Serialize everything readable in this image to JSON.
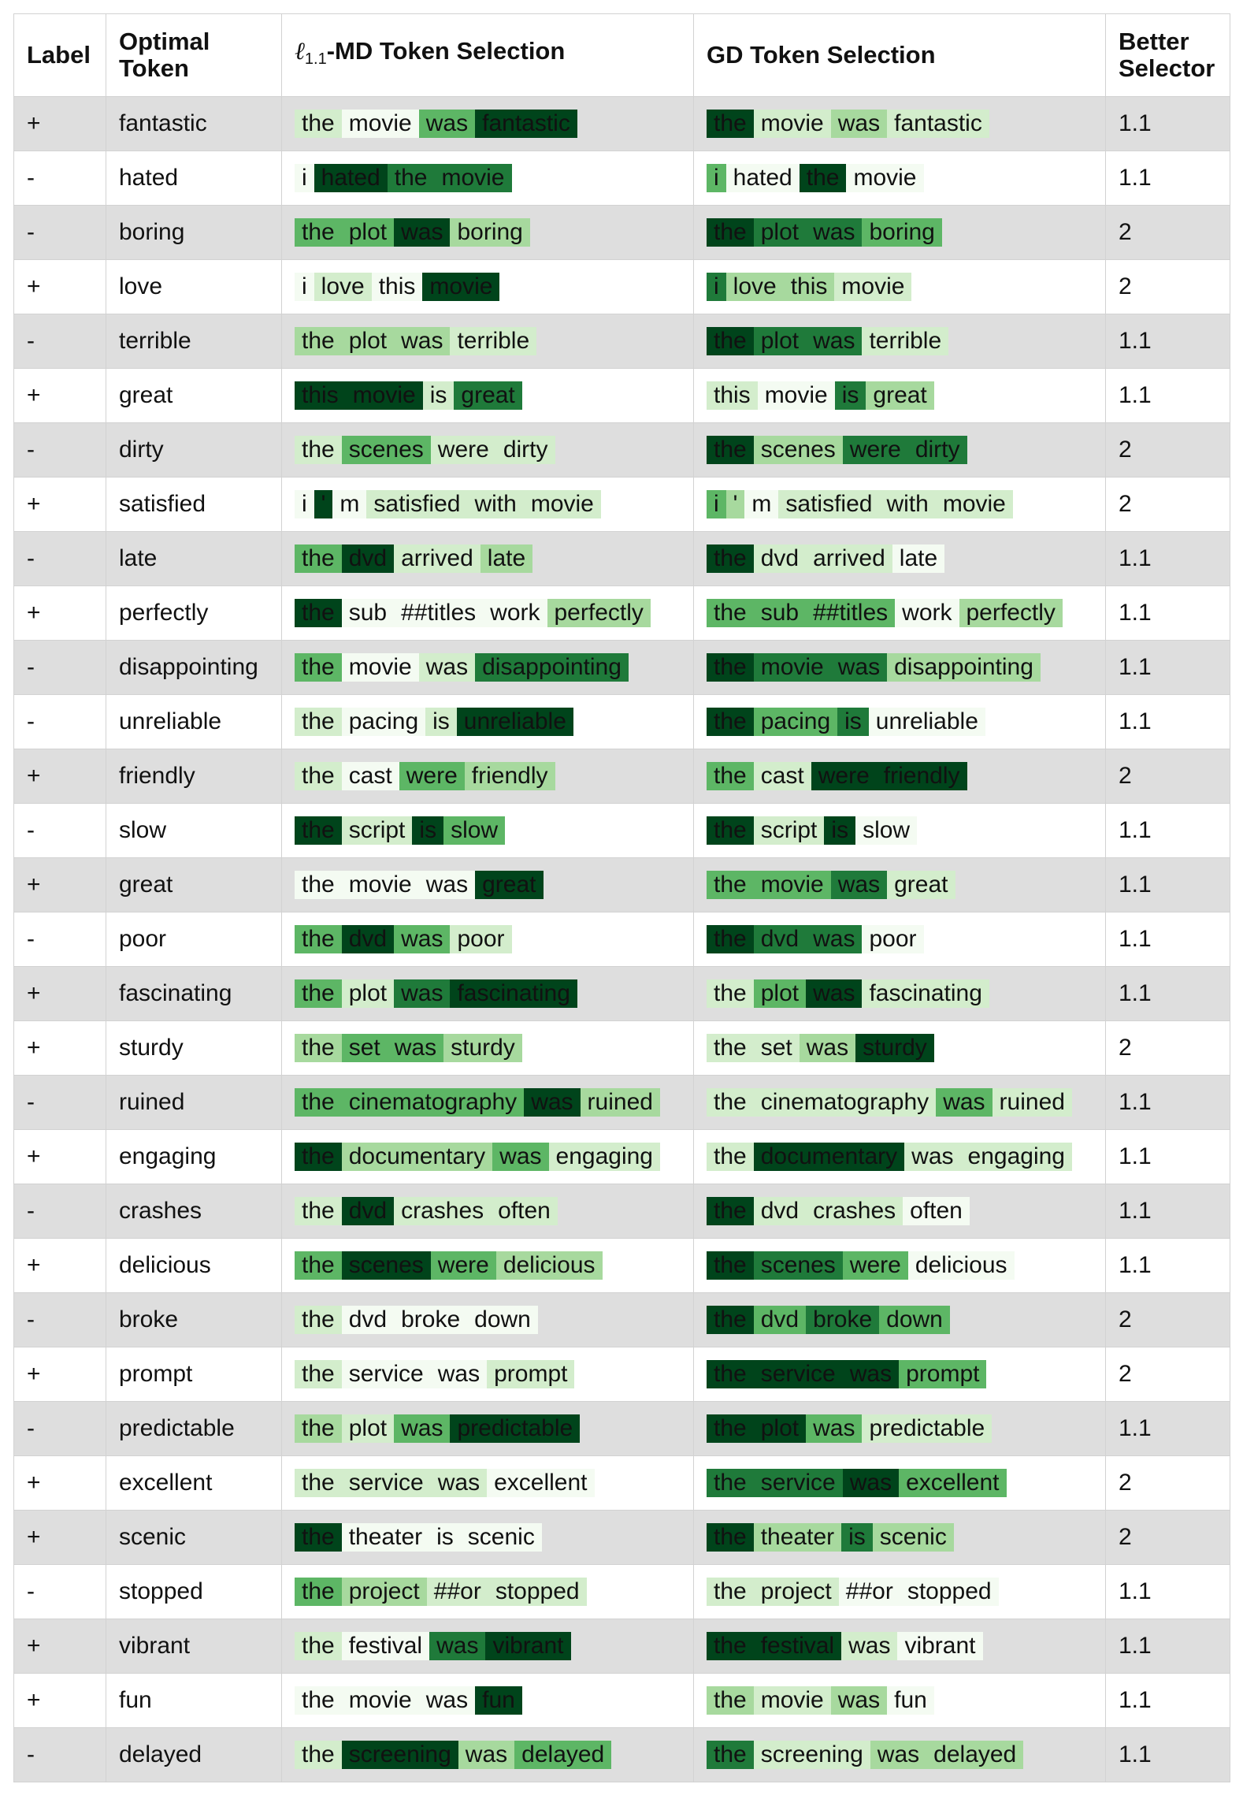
{
  "headers": {
    "label": "Label",
    "optimal": "Optimal Token",
    "md_ell": "ℓ",
    "md_sub": "1.1",
    "md_rest": "-MD Token Selection",
    "gd": "GD Token Selection",
    "better": "Better Selector"
  },
  "rows": [
    {
      "label": "+",
      "optimal": "fantastic",
      "md": [
        [
          "the",
          1
        ],
        [
          "movie",
          0
        ],
        [
          "was",
          3
        ],
        [
          "fantastic",
          5
        ]
      ],
      "gd": [
        [
          "the",
          5
        ],
        [
          "movie",
          1
        ],
        [
          "was",
          2
        ],
        [
          "fantastic",
          1
        ]
      ],
      "better": "1.1"
    },
    {
      "label": "-",
      "optimal": "hated",
      "md": [
        [
          "i",
          0
        ],
        [
          "hated",
          5
        ],
        [
          "the",
          4
        ],
        [
          "movie",
          4
        ]
      ],
      "gd": [
        [
          "i",
          3
        ],
        [
          "hated",
          0
        ],
        [
          "the",
          5
        ],
        [
          "movie",
          0
        ]
      ],
      "better": "1.1"
    },
    {
      "label": "-",
      "optimal": "boring",
      "md": [
        [
          "the",
          3
        ],
        [
          "plot",
          3
        ],
        [
          "was",
          5
        ],
        [
          "boring",
          2
        ]
      ],
      "gd": [
        [
          "the",
          5
        ],
        [
          "plot",
          4
        ],
        [
          "was",
          4
        ],
        [
          "boring",
          3
        ]
      ],
      "better": "2"
    },
    {
      "label": "+",
      "optimal": "love",
      "md": [
        [
          "i",
          0
        ],
        [
          "love",
          1
        ],
        [
          "this",
          0
        ],
        [
          "movie",
          5
        ]
      ],
      "gd": [
        [
          "i",
          4
        ],
        [
          "love",
          2
        ],
        [
          "this",
          2
        ],
        [
          "movie",
          1
        ]
      ],
      "better": "2"
    },
    {
      "label": "-",
      "optimal": "terrible",
      "md": [
        [
          "the",
          2
        ],
        [
          "plot",
          2
        ],
        [
          "was",
          2
        ],
        [
          "terrible",
          1
        ]
      ],
      "gd": [
        [
          "the",
          5
        ],
        [
          "plot",
          4
        ],
        [
          "was",
          4
        ],
        [
          "terrible",
          1
        ]
      ],
      "better": "1.1"
    },
    {
      "label": "+",
      "optimal": "great",
      "md": [
        [
          "this",
          5
        ],
        [
          "movie",
          5
        ],
        [
          "is",
          1
        ],
        [
          "great",
          4
        ]
      ],
      "gd": [
        [
          "this",
          1
        ],
        [
          "movie",
          0
        ],
        [
          "is",
          4
        ],
        [
          "great",
          2
        ]
      ],
      "better": "1.1"
    },
    {
      "label": "-",
      "optimal": "dirty",
      "md": [
        [
          "the",
          1
        ],
        [
          "scenes",
          3
        ],
        [
          "were",
          1
        ],
        [
          "dirty",
          1
        ]
      ],
      "gd": [
        [
          "the",
          5
        ],
        [
          "scenes",
          2
        ],
        [
          "were",
          4
        ],
        [
          "dirty",
          4
        ]
      ],
      "better": "2"
    },
    {
      "label": "+",
      "optimal": "satisfied",
      "md": [
        [
          "i",
          0
        ],
        [
          "'",
          5
        ],
        [
          "m",
          0
        ],
        [
          "satisfied",
          1
        ],
        [
          "with",
          1
        ],
        [
          "movie",
          1
        ]
      ],
      "gd": [
        [
          "i",
          3
        ],
        [
          "'",
          2
        ],
        [
          "m",
          0
        ],
        [
          "satisfied",
          1
        ],
        [
          "with",
          1
        ],
        [
          "movie",
          1
        ]
      ],
      "better": "2"
    },
    {
      "label": "-",
      "optimal": "late",
      "md": [
        [
          "the",
          3
        ],
        [
          "dvd",
          5
        ],
        [
          "arrived",
          1
        ],
        [
          "late",
          2
        ]
      ],
      "gd": [
        [
          "the",
          5
        ],
        [
          "dvd",
          1
        ],
        [
          "arrived",
          1
        ],
        [
          "late",
          0
        ]
      ],
      "better": "1.1"
    },
    {
      "label": "+",
      "optimal": "perfectly",
      "md": [
        [
          "the",
          5
        ],
        [
          "sub",
          0
        ],
        [
          "##titles",
          0
        ],
        [
          "work",
          0
        ],
        [
          "perfectly",
          2
        ]
      ],
      "gd": [
        [
          "the",
          3
        ],
        [
          "sub",
          3
        ],
        [
          "##titles",
          3
        ],
        [
          "work",
          0
        ],
        [
          "perfectly",
          2
        ]
      ],
      "better": "1.1"
    },
    {
      "label": "-",
      "optimal": "disappointing",
      "md": [
        [
          "the",
          3
        ],
        [
          "movie",
          0
        ],
        [
          "was",
          1
        ],
        [
          "disappointing",
          4
        ]
      ],
      "gd": [
        [
          "the",
          5
        ],
        [
          "movie",
          4
        ],
        [
          "was",
          4
        ],
        [
          "disappointing",
          2
        ]
      ],
      "better": "1.1"
    },
    {
      "label": "-",
      "optimal": "unreliable",
      "md": [
        [
          "the",
          1
        ],
        [
          "pacing",
          0
        ],
        [
          "is",
          1
        ],
        [
          "unreliable",
          5
        ]
      ],
      "gd": [
        [
          "the",
          5
        ],
        [
          "pacing",
          3
        ],
        [
          "is",
          4
        ],
        [
          "unreliable",
          0
        ]
      ],
      "better": "1.1"
    },
    {
      "label": "+",
      "optimal": "friendly",
      "md": [
        [
          "the",
          1
        ],
        [
          "cast",
          0
        ],
        [
          "were",
          3
        ],
        [
          "friendly",
          2
        ]
      ],
      "gd": [
        [
          "the",
          3
        ],
        [
          "cast",
          1
        ],
        [
          "were",
          5
        ],
        [
          "friendly",
          5
        ]
      ],
      "better": "2"
    },
    {
      "label": "-",
      "optimal": "slow",
      "md": [
        [
          "the",
          5
        ],
        [
          "script",
          1
        ],
        [
          "is",
          5
        ],
        [
          "slow",
          3
        ]
      ],
      "gd": [
        [
          "the",
          5
        ],
        [
          "script",
          1
        ],
        [
          "is",
          5
        ],
        [
          "slow",
          0
        ]
      ],
      "better": "1.1"
    },
    {
      "label": "+",
      "optimal": "great",
      "md": [
        [
          "the",
          0
        ],
        [
          "movie",
          0
        ],
        [
          "was",
          0
        ],
        [
          "great",
          5
        ]
      ],
      "gd": [
        [
          "the",
          3
        ],
        [
          "movie",
          3
        ],
        [
          "was",
          4
        ],
        [
          "great",
          1
        ]
      ],
      "better": "1.1"
    },
    {
      "label": "-",
      "optimal": "poor",
      "md": [
        [
          "the",
          3
        ],
        [
          "dvd",
          5
        ],
        [
          "was",
          3
        ],
        [
          "poor",
          1
        ]
      ],
      "gd": [
        [
          "the",
          5
        ],
        [
          "dvd",
          4
        ],
        [
          "was",
          4
        ],
        [
          "poor",
          0
        ]
      ],
      "better": "1.1"
    },
    {
      "label": "+",
      "optimal": "fascinating",
      "md": [
        [
          "the",
          3
        ],
        [
          "plot",
          1
        ],
        [
          "was",
          4
        ],
        [
          "fascinating",
          5
        ]
      ],
      "gd": [
        [
          "the",
          1
        ],
        [
          "plot",
          3
        ],
        [
          "was",
          5
        ],
        [
          "fascinating",
          1
        ]
      ],
      "better": "1.1"
    },
    {
      "label": "+",
      "optimal": "sturdy",
      "md": [
        [
          "the",
          2
        ],
        [
          "set",
          3
        ],
        [
          "was",
          3
        ],
        [
          "sturdy",
          2
        ]
      ],
      "gd": [
        [
          "the",
          1
        ],
        [
          "set",
          1
        ],
        [
          "was",
          2
        ],
        [
          "sturdy",
          5
        ]
      ],
      "better": "2"
    },
    {
      "label": "-",
      "optimal": "ruined",
      "md": [
        [
          "the",
          3
        ],
        [
          "cinematography",
          3
        ],
        [
          "was",
          5
        ],
        [
          "ruined",
          2
        ]
      ],
      "gd": [
        [
          "the",
          1
        ],
        [
          "cinematography",
          1
        ],
        [
          "was",
          3
        ],
        [
          "ruined",
          1
        ]
      ],
      "better": "1.1"
    },
    {
      "label": "+",
      "optimal": "engaging",
      "md": [
        [
          "the",
          5
        ],
        [
          "documentary",
          2
        ],
        [
          "was",
          3
        ],
        [
          "engaging",
          1
        ]
      ],
      "gd": [
        [
          "the",
          1
        ],
        [
          "documentary",
          5
        ],
        [
          "was",
          1
        ],
        [
          "engaging",
          1
        ]
      ],
      "better": "1.1"
    },
    {
      "label": "-",
      "optimal": "crashes",
      "md": [
        [
          "the",
          1
        ],
        [
          "dvd",
          5
        ],
        [
          "crashes",
          1
        ],
        [
          "often",
          1
        ]
      ],
      "gd": [
        [
          "the",
          5
        ],
        [
          "dvd",
          1
        ],
        [
          "crashes",
          1
        ],
        [
          "often",
          0
        ]
      ],
      "better": "1.1"
    },
    {
      "label": "+",
      "optimal": "delicious",
      "md": [
        [
          "the",
          3
        ],
        [
          "scenes",
          5
        ],
        [
          "were",
          3
        ],
        [
          "delicious",
          2
        ]
      ],
      "gd": [
        [
          "the",
          5
        ],
        [
          "scenes",
          4
        ],
        [
          "were",
          3
        ],
        [
          "delicious",
          0
        ]
      ],
      "better": "1.1"
    },
    {
      "label": "-",
      "optimal": "broke",
      "md": [
        [
          "the",
          1
        ],
        [
          "dvd",
          0
        ],
        [
          "broke",
          0
        ],
        [
          "down",
          0
        ]
      ],
      "gd": [
        [
          "the",
          5
        ],
        [
          "dvd",
          3
        ],
        [
          "broke",
          4
        ],
        [
          "down",
          3
        ]
      ],
      "better": "2"
    },
    {
      "label": "+",
      "optimal": "prompt",
      "md": [
        [
          "the",
          1
        ],
        [
          "service",
          0
        ],
        [
          "was",
          0
        ],
        [
          "prompt",
          1
        ]
      ],
      "gd": [
        [
          "the",
          5
        ],
        [
          "service",
          5
        ],
        [
          "was",
          5
        ],
        [
          "prompt",
          3
        ]
      ],
      "better": "2"
    },
    {
      "label": "-",
      "optimal": "predictable",
      "md": [
        [
          "the",
          2
        ],
        [
          "plot",
          1
        ],
        [
          "was",
          3
        ],
        [
          "predictable",
          5
        ]
      ],
      "gd": [
        [
          "the",
          5
        ],
        [
          "plot",
          5
        ],
        [
          "was",
          3
        ],
        [
          "predictable",
          1
        ]
      ],
      "better": "1.1"
    },
    {
      "label": "+",
      "optimal": "excellent",
      "md": [
        [
          "the",
          1
        ],
        [
          "service",
          1
        ],
        [
          "was",
          1
        ],
        [
          "excellent",
          0
        ]
      ],
      "gd": [
        [
          "the",
          4
        ],
        [
          "service",
          4
        ],
        [
          "was",
          5
        ],
        [
          "excellent",
          3
        ]
      ],
      "better": "2"
    },
    {
      "label": "+",
      "optimal": "scenic",
      "md": [
        [
          "the",
          5
        ],
        [
          "theater",
          0
        ],
        [
          "is",
          0
        ],
        [
          "scenic",
          0
        ]
      ],
      "gd": [
        [
          "the",
          5
        ],
        [
          "theater",
          2
        ],
        [
          "is",
          4
        ],
        [
          "scenic",
          2
        ]
      ],
      "better": "2"
    },
    {
      "label": "-",
      "optimal": "stopped",
      "md": [
        [
          "the",
          3
        ],
        [
          "project",
          2
        ],
        [
          "##or",
          1
        ],
        [
          "stopped",
          1
        ]
      ],
      "gd": [
        [
          "the",
          1
        ],
        [
          "project",
          1
        ],
        [
          "##or",
          0
        ],
        [
          "stopped",
          0
        ]
      ],
      "better": "1.1"
    },
    {
      "label": "+",
      "optimal": "vibrant",
      "md": [
        [
          "the",
          1
        ],
        [
          "festival",
          0
        ],
        [
          "was",
          4
        ],
        [
          "vibrant",
          5
        ]
      ],
      "gd": [
        [
          "the",
          5
        ],
        [
          "festival",
          5
        ],
        [
          "was",
          1
        ],
        [
          "vibrant",
          0
        ]
      ],
      "better": "1.1"
    },
    {
      "label": "+",
      "optimal": "fun",
      "md": [
        [
          "the",
          0
        ],
        [
          "movie",
          0
        ],
        [
          "was",
          0
        ],
        [
          "fun",
          5
        ]
      ],
      "gd": [
        [
          "the",
          2
        ],
        [
          "movie",
          1
        ],
        [
          "was",
          2
        ],
        [
          "fun",
          0
        ]
      ],
      "better": "1.1"
    },
    {
      "label": "-",
      "optimal": "delayed",
      "md": [
        [
          "the",
          1
        ],
        [
          "screening",
          5
        ],
        [
          "was",
          2
        ],
        [
          "delayed",
          3
        ]
      ],
      "gd": [
        [
          "the",
          4
        ],
        [
          "screening",
          1
        ],
        [
          "was",
          2
        ],
        [
          "delayed",
          2
        ]
      ],
      "better": "1.1"
    }
  ]
}
